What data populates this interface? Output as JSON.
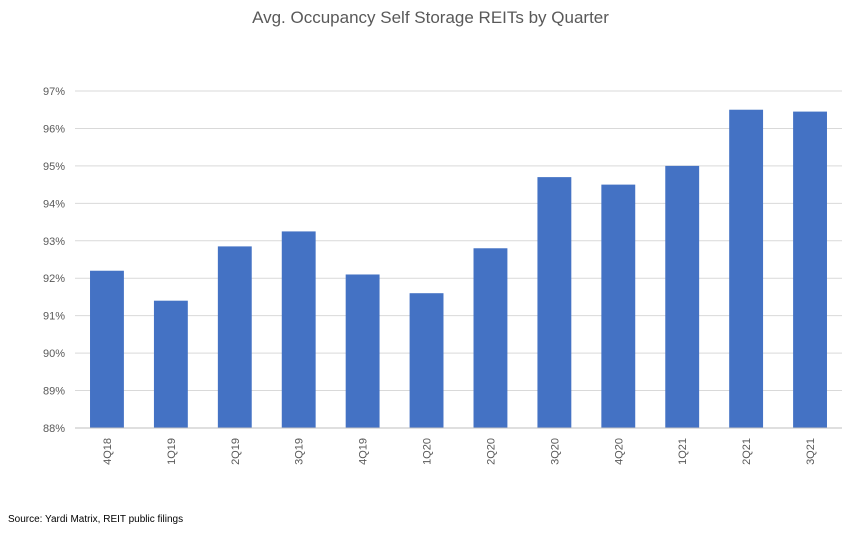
{
  "chart_data": {
    "type": "bar",
    "title": "Avg. Occupancy Self Storage REITs by Quarter",
    "xlabel": "",
    "ylabel": "",
    "categories": [
      "4Q18",
      "1Q19",
      "2Q19",
      "3Q19",
      "4Q19",
      "1Q20",
      "2Q20",
      "3Q20",
      "4Q20",
      "1Q21",
      "2Q21",
      "3Q21"
    ],
    "values": [
      92.2,
      91.4,
      92.85,
      93.25,
      92.1,
      91.6,
      92.8,
      94.7,
      94.5,
      95.0,
      96.5,
      96.45
    ],
    "ylim": [
      88,
      97
    ],
    "yticks": [
      88,
      89,
      90,
      91,
      92,
      93,
      94,
      95,
      96,
      97
    ],
    "ytick_labels": [
      "88%",
      "89%",
      "90%",
      "91%",
      "92%",
      "93%",
      "94%",
      "95%",
      "96%",
      "97%"
    ],
    "grid": true,
    "legend": "none",
    "bar_color": "#4472C4",
    "grid_color": "#D9D9D9"
  },
  "source_note": "Source: Yardi Matrix, REIT public filings"
}
